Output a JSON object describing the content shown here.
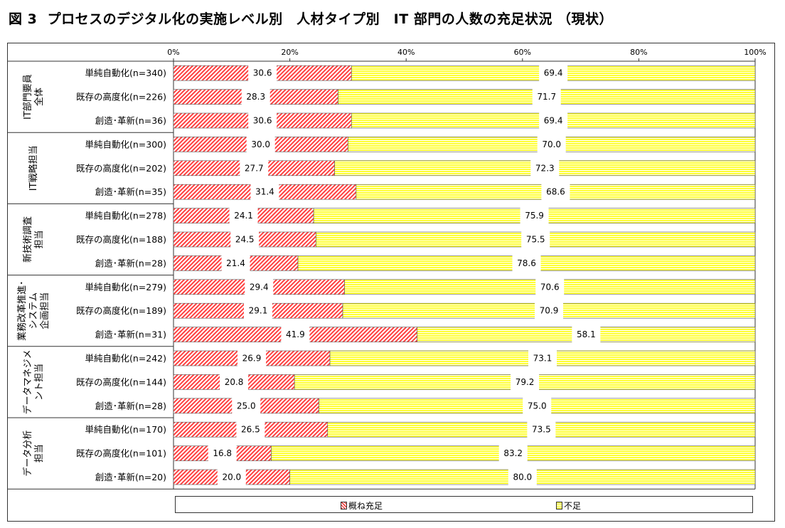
{
  "title": "図 3  プロセスのデジタル化の実施レベル別　人材タイプ別　IT 部門の人数の充足状況 （現状）",
  "chart_data": {
    "type": "bar",
    "orientation": "horizontal",
    "stacked": "percent",
    "title": "図 3  プロセスのデジタル化の実施レベル別　人材タイプ別　IT 部門の人数の充足状況 （現状）",
    "xlabel": "",
    "ylabel": "",
    "xlim": [
      0,
      100
    ],
    "x_ticks": [
      "0%",
      "20%",
      "40%",
      "60%",
      "80%",
      "100%"
    ],
    "legend_position": "bottom",
    "series": [
      {
        "name": "概ね充足",
        "color": "#ff4040",
        "pattern": "diagonal-hatch"
      },
      {
        "name": "不足",
        "color": "#ffff33",
        "pattern": "horizontal-lines"
      }
    ],
    "groups": [
      {
        "label_lines": [
          "IT部門要員",
          "全体"
        ],
        "rows": [
          {
            "label": "単純自動化(n=340)",
            "values": [
              30.6,
              69.4
            ]
          },
          {
            "label": "既存の高度化(n=226)",
            "values": [
              28.3,
              71.7
            ]
          },
          {
            "label": "創造･革新(n=36)",
            "values": [
              30.6,
              69.4
            ]
          }
        ]
      },
      {
        "label_lines": [
          "IT戦略担当"
        ],
        "rows": [
          {
            "label": "単純自動化(n=300)",
            "values": [
              30.0,
              70.0
            ]
          },
          {
            "label": "既存の高度化(n=202)",
            "values": [
              27.7,
              72.3
            ]
          },
          {
            "label": "創造･革新(n=35)",
            "values": [
              31.4,
              68.6
            ]
          }
        ]
      },
      {
        "label_lines": [
          "新技術調査",
          "担当"
        ],
        "rows": [
          {
            "label": "単純自動化(n=278)",
            "values": [
              24.1,
              75.9
            ]
          },
          {
            "label": "既存の高度化(n=188)",
            "values": [
              24.5,
              75.5
            ]
          },
          {
            "label": "創造･革新(n=28)",
            "values": [
              21.4,
              78.6
            ]
          }
        ]
      },
      {
        "label_lines": [
          "業務改革推進･",
          "システム",
          "企画担当"
        ],
        "rows": [
          {
            "label": "単純自動化(n=279)",
            "values": [
              29.4,
              70.6
            ]
          },
          {
            "label": "既存の高度化(n=189)",
            "values": [
              29.1,
              70.9
            ]
          },
          {
            "label": "創造･革新(n=31)",
            "values": [
              41.9,
              58.1
            ]
          }
        ]
      },
      {
        "label_lines": [
          "データマネジメ",
          "ント担当"
        ],
        "rows": [
          {
            "label": "単純自動化(n=242)",
            "values": [
              26.9,
              73.1
            ]
          },
          {
            "label": "既存の高度化(n=144)",
            "values": [
              20.8,
              79.2
            ]
          },
          {
            "label": "創造･革新(n=28)",
            "values": [
              25.0,
              75.0
            ]
          }
        ]
      },
      {
        "label_lines": [
          "データ分析",
          "担当"
        ],
        "rows": [
          {
            "label": "単純自動化(n=170)",
            "values": [
              26.5,
              73.5
            ]
          },
          {
            "label": "既存の高度化(n=101)",
            "values": [
              16.8,
              83.2
            ]
          },
          {
            "label": "創造･革新(n=20)",
            "values": [
              20.0,
              80.0
            ]
          }
        ]
      }
    ]
  },
  "legend": {
    "items": [
      "概ね充足",
      "不足"
    ]
  }
}
